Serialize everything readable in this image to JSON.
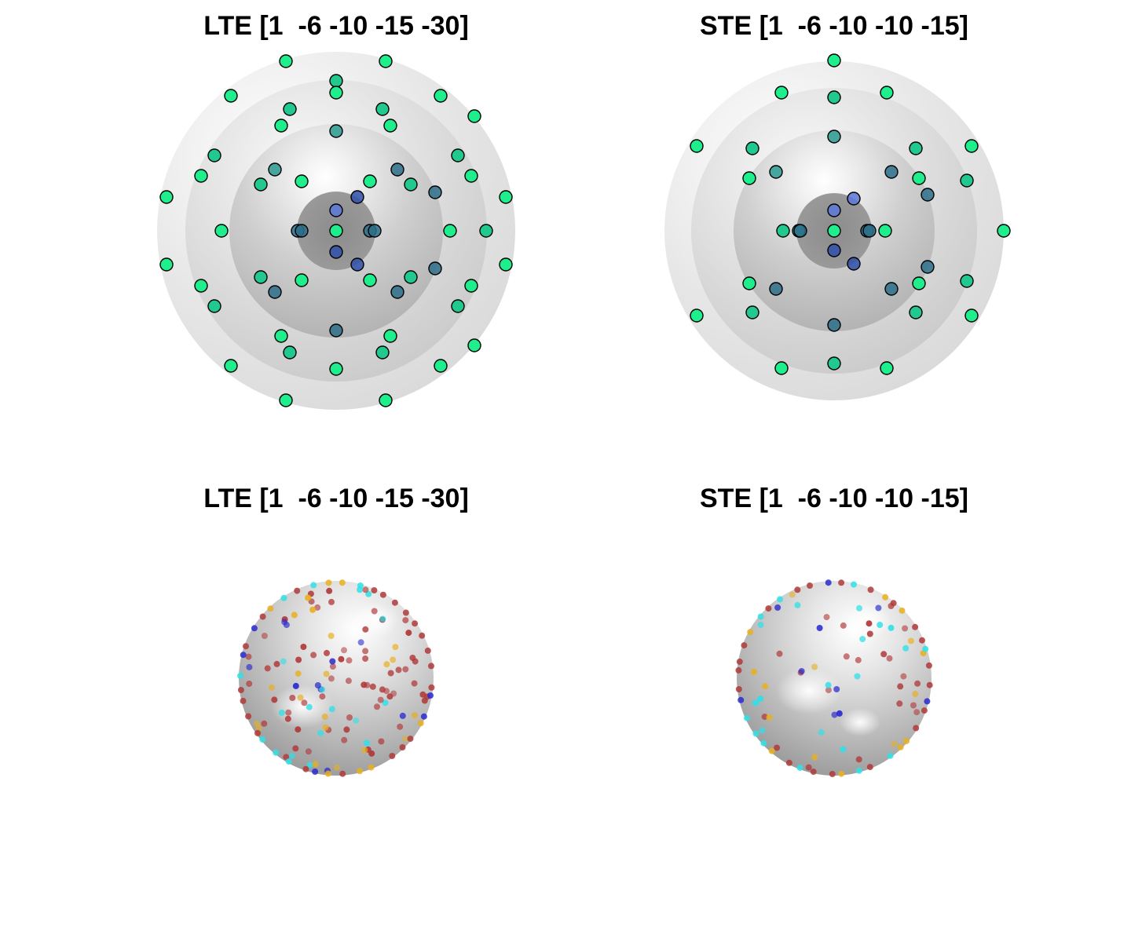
{
  "panels": [
    {
      "title": "LTE [1  -6 -10 -15 -30]"
    },
    {
      "title": "STE [1  -6 -10 -10 -15]"
    },
    {
      "title": "LTE [1  -6 -10 -15 -30]"
    },
    {
      "title": "STE [1  -6 -10 -10 -15]"
    }
  ],
  "colors": {
    "background": "#ffffff",
    "sphere_gray": "#c8c8c8",
    "point_outline": "#000000",
    "point_colors_top": [
      "#1fee8c",
      "#22c98f",
      "#2a9a90",
      "#2b6e8a",
      "#2f4fa8",
      "#5a78d8"
    ],
    "point_colors_bottom": [
      "#b03a3a",
      "#e8b020",
      "#30e0e8",
      "#2a2ad0"
    ]
  }
}
